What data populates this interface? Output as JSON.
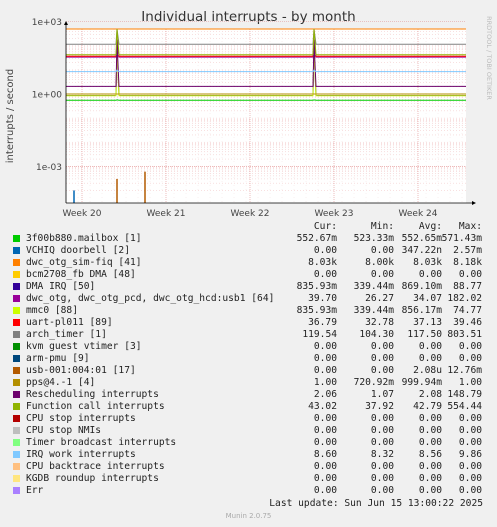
{
  "chart_data": {
    "type": "line",
    "title": "Individual interrupts - by month",
    "ylabel": "interrupts / second",
    "yscale": "log",
    "ylim": [
      3e-05,
      500
    ],
    "yticks": [
      "1e+03",
      "1e+00",
      "1e-03"
    ],
    "xticks": [
      "Week 20",
      "Week 21",
      "Week 22",
      "Week 23",
      "Week 24"
    ],
    "grid": true,
    "side_label": "RRDTOOL / TOBI OETIKER",
    "columns": [
      "Cur:",
      "Min:",
      "Avg:",
      "Max:"
    ],
    "series": [
      {
        "name": "3f00b880.mailbox [1]",
        "color": "#00cc00",
        "cur": "552.67m",
        "min": "523.33m",
        "avg": "552.65m",
        "max": "571.43m"
      },
      {
        "name": "VCHIQ doorbell [2]",
        "color": "#0066b3",
        "cur": "0.00",
        "min": "0.00",
        "avg": "347.22n",
        "max": "2.57m"
      },
      {
        "name": "dwc_otg_sim-fiq [41]",
        "color": "#ff8000",
        "cur": "8.03k",
        "min": "8.00k",
        "avg": "8.03k",
        "max": "8.18k"
      },
      {
        "name": "bcm2708_fb DMA [48]",
        "color": "#ffcc00",
        "cur": "0.00",
        "min": "0.00",
        "avg": "0.00",
        "max": "0.00"
      },
      {
        "name": "DMA IRQ [50]",
        "color": "#330099",
        "cur": "835.93m",
        "min": "339.44m",
        "avg": "869.10m",
        "max": "88.77"
      },
      {
        "name": "dwc_otg, dwc_otg_pcd, dwc_otg_hcd:usb1 [64]",
        "color": "#990099",
        "cur": "39.70",
        "min": "26.27",
        "avg": "34.07",
        "max": "182.02"
      },
      {
        "name": "mmc0 [88]",
        "color": "#ccff00",
        "cur": "835.93m",
        "min": "339.44m",
        "avg": "856.17m",
        "max": "74.77"
      },
      {
        "name": "uart-pl011 [89]",
        "color": "#ff0000",
        "cur": "36.79",
        "min": "32.78",
        "avg": "37.13",
        "max": "39.46"
      },
      {
        "name": "arch_timer [1]",
        "color": "#808080",
        "cur": "119.54",
        "min": "104.30",
        "avg": "117.50",
        "max": "803.51"
      },
      {
        "name": "kvm guest vtimer [3]",
        "color": "#008f00",
        "cur": "0.00",
        "min": "0.00",
        "avg": "0.00",
        "max": "0.00"
      },
      {
        "name": "arm-pmu [9]",
        "color": "#00487d",
        "cur": "0.00",
        "min": "0.00",
        "avg": "0.00",
        "max": "0.00"
      },
      {
        "name": "usb-001:004:01 [17]",
        "color": "#b35a00",
        "cur": "0.00",
        "min": "0.00",
        "avg": "2.08u",
        "max": "12.76m"
      },
      {
        "name": "pps@4.-1 [4]",
        "color": "#b38f00",
        "cur": "1.00",
        "min": "720.92m",
        "avg": "999.94m",
        "max": "1.00"
      },
      {
        "name": "Rescheduling interrupts",
        "color": "#6b006b",
        "cur": "2.06",
        "min": "1.07",
        "avg": "2.08",
        "max": "148.79"
      },
      {
        "name": "Function call interrupts",
        "color": "#8fb300",
        "cur": "43.02",
        "min": "37.92",
        "avg": "42.79",
        "max": "554.44"
      },
      {
        "name": "CPU stop interrupts",
        "color": "#b30000",
        "cur": "0.00",
        "min": "0.00",
        "avg": "0.00",
        "max": "0.00"
      },
      {
        "name": "CPU stop NMIs",
        "color": "#bebebe",
        "cur": "0.00",
        "min": "0.00",
        "avg": "0.00",
        "max": "0.00"
      },
      {
        "name": "Timer broadcast interrupts",
        "color": "#80ff80",
        "cur": "0.00",
        "min": "0.00",
        "avg": "0.00",
        "max": "0.00"
      },
      {
        "name": "IRQ work interrupts",
        "color": "#80c9ff",
        "cur": "8.60",
        "min": "8.32",
        "avg": "8.56",
        "max": "9.86"
      },
      {
        "name": "CPU backtrace interrupts",
        "color": "#ffc080",
        "cur": "0.00",
        "min": "0.00",
        "avg": "0.00",
        "max": "0.00"
      },
      {
        "name": "KGDB roundup interrupts",
        "color": "#ffe680",
        "cur": "0.00",
        "min": "0.00",
        "avg": "0.00",
        "max": "0.00"
      },
      {
        "name": "Err",
        "color": "#aa80ff",
        "cur": "0.00",
        "min": "0.00",
        "avg": "0.00",
        "max": "0.00"
      }
    ],
    "last_update": "Last update: Sun Jun 15 13:00:22 2025",
    "footer": "Munin 2.0.75"
  }
}
